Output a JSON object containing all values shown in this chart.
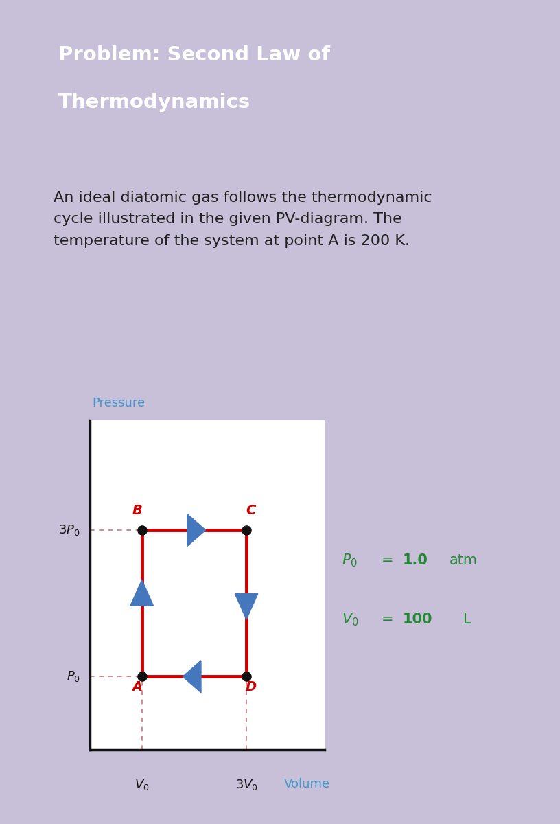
{
  "title_line1": "Problem: Second Law of",
  "title_line2": "Thermodynamics",
  "title_bg": "#6633cc",
  "title_fg": "#ffffff",
  "description": "An ideal diatomic gas follows the thermodynamic\ncycle illustrated in the given PV-diagram. The\ntemperature of the system at point A is 200 K.",
  "desc_bg": "#ffffff",
  "outer_bg": "#c8c0d8",
  "diagram_bg": "#ffffff",
  "pressure_label": "Pressure",
  "volume_label": "Volume",
  "pressure_label_color": "#4499cc",
  "volume_label_color": "#4499cc",
  "cycle_color": "#cc0000",
  "cycle_linewidth": 3.5,
  "point_color": "#111111",
  "point_size": 90,
  "arrow_color": "#4477bb",
  "label_A": "A",
  "label_B": "B",
  "label_C": "C",
  "label_D": "D",
  "label_color": "#cc0000",
  "label_fontsize": 14,
  "dashed_color": "#cc7777",
  "info_color": "#228833",
  "info_P0_val": "1.0",
  "info_V0_val": "100"
}
